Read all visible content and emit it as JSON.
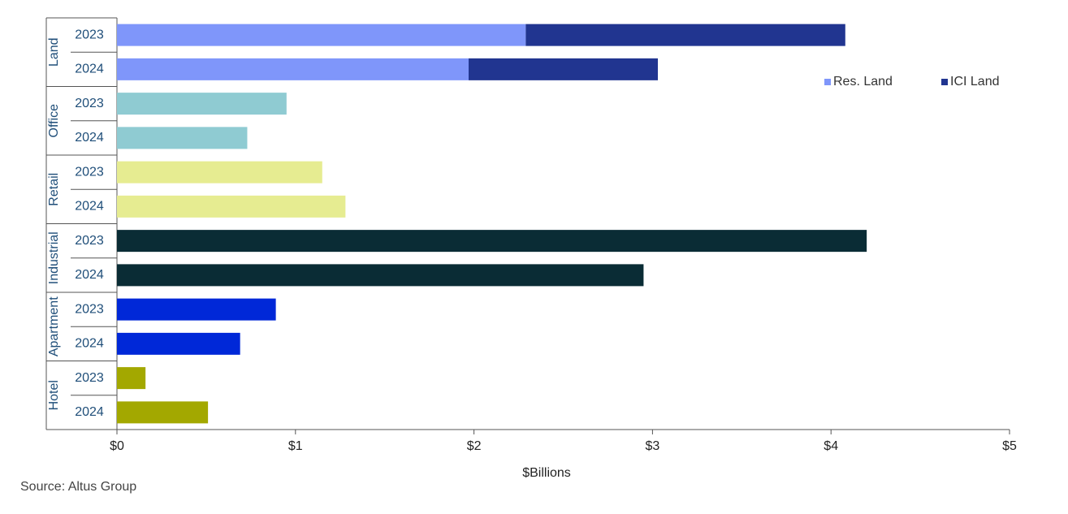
{
  "chart_data": {
    "type": "bar",
    "orientation": "horizontal",
    "stacked": true,
    "groups": [
      {
        "name": "Land",
        "categories": [
          "2023",
          "2024"
        ],
        "series": [
          {
            "name": "Res. Land",
            "color": "#7f96fa",
            "values": [
              2.29,
              1.97
            ]
          },
          {
            "name": "ICI Land",
            "color": "#213590",
            "values": [
              1.79,
              1.06
            ]
          }
        ]
      },
      {
        "name": "Office",
        "categories": [
          "2023",
          "2024"
        ],
        "color": "#8fcbd2",
        "values": [
          0.95,
          0.73
        ]
      },
      {
        "name": "Retail",
        "categories": [
          "2023",
          "2024"
        ],
        "color": "#e6ec91",
        "values": [
          1.15,
          1.28
        ]
      },
      {
        "name": "Industrial",
        "categories": [
          "2023",
          "2024"
        ],
        "color": "#0a2c35",
        "values": [
          4.2,
          2.95
        ]
      },
      {
        "name": "Apartment",
        "categories": [
          "2023",
          "2024"
        ],
        "color": "#0028d8",
        "values": [
          0.89,
          0.69
        ]
      },
      {
        "name": "Hotel",
        "categories": [
          "2023",
          "2024"
        ],
        "color": "#a3a800",
        "values": [
          0.16,
          0.51
        ]
      }
    ],
    "xlim": [
      0,
      5
    ],
    "xticks": [
      {
        "value": 0,
        "label": "$0"
      },
      {
        "value": 1,
        "label": "$1"
      },
      {
        "value": 2,
        "label": "$2"
      },
      {
        "value": 3,
        "label": "$3"
      },
      {
        "value": 4,
        "label": "$4"
      },
      {
        "value": 5,
        "label": "$5"
      }
    ],
    "xlabel": "$Billions",
    "source": "Source:  Altus Group",
    "legend": "upper right"
  }
}
